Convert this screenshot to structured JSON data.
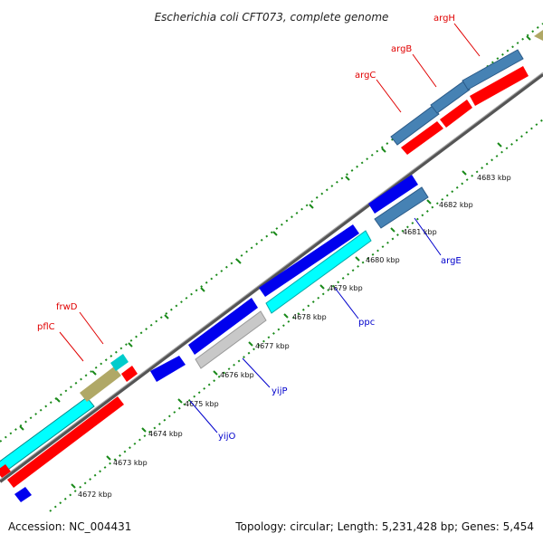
{
  "title": "Escherichia coli CFT073, complete genome",
  "footer": {
    "accession": "Accession: NC_004431",
    "summary": "Topology: circular; Length: 5,231,428 bp; Genes: 5,454"
  },
  "colors": {
    "red_gene": "#ff0000",
    "blue_gene": "#0000ee",
    "steel_gene": "#4682b4",
    "cyan_gene": "#00ffff",
    "gray_gene": "#c8c8c8",
    "khaki_gene": "#b0a866",
    "backbone": "#555555",
    "tick": "#1a8a1a",
    "label_red": "#e00000",
    "label_blue": "#0000cc"
  },
  "scale": {
    "unit": "kbp",
    "labels": [
      "4672 kbp",
      "4673 kbp",
      "4674 kbp",
      "4675 kbp",
      "4676 kbp",
      "4677 kbp",
      "4678 kbp",
      "4679 kbp",
      "4680 kbp",
      "4681 kbp",
      "4682 kbp",
      "4683 kbp"
    ]
  },
  "gene_labels": {
    "argH": "argH",
    "argB": "argB",
    "argC": "argC",
    "frwD": "frwD",
    "pflC": "pflC",
    "argE": "argE",
    "ppc": "ppc",
    "yijP": "yijP",
    "yijO": "yijO"
  }
}
